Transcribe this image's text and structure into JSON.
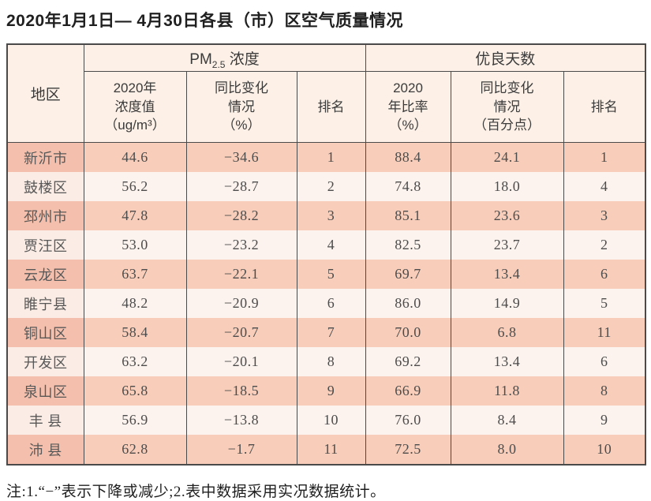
{
  "chart_data": {
    "type": "table",
    "title": "2020年1月1日— 4月30日各县（市）区空气质量情况",
    "note": "注:1.“−”表示下降或减少;2.表中数据采用实况数据统计。",
    "header": {
      "region": "地区",
      "pm_group": {
        "prefix": "PM",
        "sub": "2.5",
        "suffix": " 浓度"
      },
      "good_group": "优良天数",
      "pm_value": "2020年\n浓度值\n（ug/m³）",
      "pm_change": "同比变化\n情况\n（%）",
      "pm_rank": "排名",
      "good_ratio": "2020\n年比率\n（%）",
      "good_change": "同比变化\n情况\n（百分点）",
      "good_rank": "排名"
    },
    "columns": [
      "地区",
      "2020年浓度值（ug/m³）",
      "同比变化情况（%）",
      "排名",
      "2020年比率（%）",
      "同比变化情况（百分点）",
      "排名"
    ],
    "rows": [
      {
        "region": "新沂市",
        "pm_value": "44.6",
        "pm_change": "−34.6",
        "pm_rank": "1",
        "good_ratio": "88.4",
        "good_change": "24.1",
        "good_rank": "1"
      },
      {
        "region": "鼓楼区",
        "pm_value": "56.2",
        "pm_change": "−28.7",
        "pm_rank": "2",
        "good_ratio": "74.8",
        "good_change": "18.0",
        "good_rank": "4"
      },
      {
        "region": "邳州市",
        "pm_value": "47.8",
        "pm_change": "−28.2",
        "pm_rank": "3",
        "good_ratio": "85.1",
        "good_change": "23.6",
        "good_rank": "3"
      },
      {
        "region": "贾汪区",
        "pm_value": "53.0",
        "pm_change": "−23.2",
        "pm_rank": "4",
        "good_ratio": "82.5",
        "good_change": "23.7",
        "good_rank": "2"
      },
      {
        "region": "云龙区",
        "pm_value": "63.7",
        "pm_change": "−22.1",
        "pm_rank": "5",
        "good_ratio": "69.7",
        "good_change": "13.4",
        "good_rank": "6"
      },
      {
        "region": "睢宁县",
        "pm_value": "48.2",
        "pm_change": "−20.9",
        "pm_rank": "6",
        "good_ratio": "86.0",
        "good_change": "14.9",
        "good_rank": "5"
      },
      {
        "region": "铜山区",
        "pm_value": "58.4",
        "pm_change": "−20.7",
        "pm_rank": "7",
        "good_ratio": "70.0",
        "good_change": "6.8",
        "good_rank": "11"
      },
      {
        "region": "开发区",
        "pm_value": "63.2",
        "pm_change": "−20.1",
        "pm_rank": "8",
        "good_ratio": "69.2",
        "good_change": "13.4",
        "good_rank": "6"
      },
      {
        "region": "泉山区",
        "pm_value": "65.8",
        "pm_change": "−18.5",
        "pm_rank": "9",
        "good_ratio": "66.9",
        "good_change": "11.8",
        "good_rank": "8"
      },
      {
        "region": "丰 县",
        "pm_value": "56.9",
        "pm_change": "−13.8",
        "pm_rank": "10",
        "good_ratio": "76.0",
        "good_change": "8.4",
        "good_rank": "9"
      },
      {
        "region": "沛 县",
        "pm_value": "62.8",
        "pm_change": "−1.7",
        "pm_rank": "11",
        "good_ratio": "72.5",
        "good_change": "8.0",
        "good_rank": "10"
      }
    ],
    "colors": {
      "header_bg": "#fcf0e7",
      "row_salmon": "#f8cebb",
      "row_salmon_region": "#f4c0ad",
      "row_light": "#fdf3ee",
      "row_light_region": "#fbece5",
      "border": "#4a4a4a",
      "text": "#4c4c4c"
    }
  }
}
